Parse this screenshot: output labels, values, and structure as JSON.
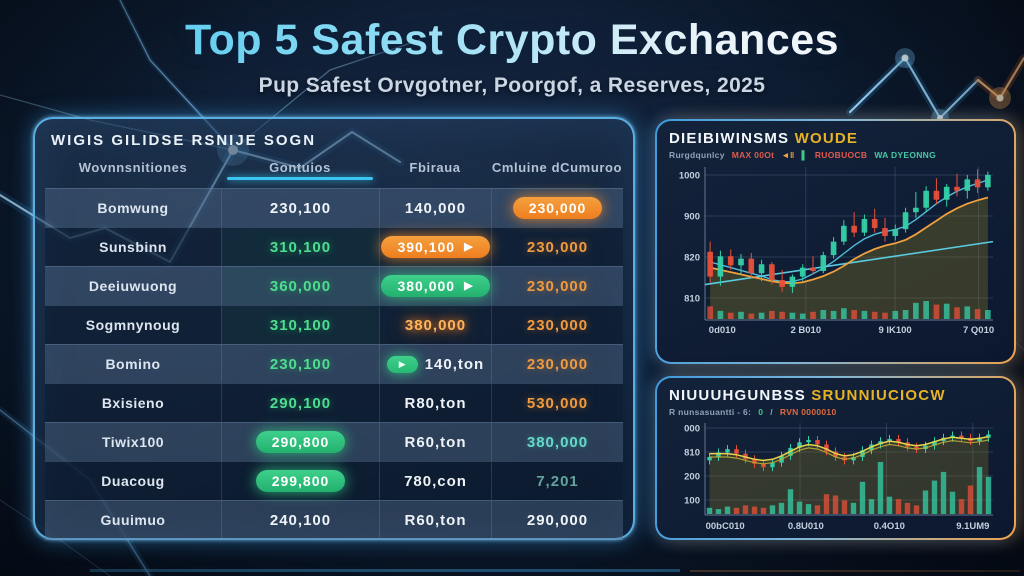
{
  "header": {
    "title": "Top 5 Safest Crypto Exchances",
    "subtitle": "Pup Safest Orvgotner, Poorgof, a Reserves, 2025"
  },
  "table_panel": {
    "title": "WIGIS GILIDSE RSNIJE SOGN",
    "columns": [
      "Wovnnsnitiones",
      "Gontuios",
      "Fbiraua",
      "Cmluine dCumuroo"
    ],
    "rows": [
      {
        "name": "Bomwung",
        "c2": {
          "t": "230,100",
          "s": "white"
        },
        "c3": {
          "t": "140,000",
          "s": "white"
        },
        "c4": {
          "t": "230,000",
          "s": "pill-orange"
        }
      },
      {
        "name": "Sunsbinn",
        "c2": {
          "t": "310,100",
          "s": "green"
        },
        "c3": {
          "t": "390,100",
          "s": "pill-orange-arrow"
        },
        "c4": {
          "t": "230,000",
          "s": "orange"
        }
      },
      {
        "name": "Deeiuwuong",
        "c2": {
          "t": "360,000",
          "s": "green"
        },
        "c3": {
          "t": "380,000",
          "s": "pill-green-arrow"
        },
        "c4": {
          "t": "230,000",
          "s": "orange"
        }
      },
      {
        "name": "Sogmnynoug",
        "c2": {
          "t": "310,100",
          "s": "green"
        },
        "c3": {
          "t": "380,000",
          "s": "glow-orange"
        },
        "c4": {
          "t": "230,000",
          "s": "orange"
        }
      },
      {
        "name": "Bomino",
        "c2": {
          "t": "230,100",
          "s": "green"
        },
        "c3": {
          "t": "140,ton",
          "s": "white",
          "chip": "arrow"
        },
        "c4": {
          "t": "230,000",
          "s": "orange"
        }
      },
      {
        "name": "Bxisieno",
        "c2": {
          "t": "290,100",
          "s": "green"
        },
        "c3": {
          "t": "R80,ton",
          "s": "white"
        },
        "c4": {
          "t": "530,000",
          "s": "orange"
        }
      },
      {
        "name": "Tiwix100",
        "c2": {
          "t": "290,800",
          "s": "pill-green"
        },
        "c3": {
          "t": "R60,ton",
          "s": "white"
        },
        "c4": {
          "t": "380,000",
          "s": "teal"
        }
      },
      {
        "name": "Duacoug",
        "c2": {
          "t": "299,800",
          "s": "pill-green"
        },
        "c3": {
          "t": "780,con",
          "s": "white"
        },
        "c4": {
          "t": "7,201",
          "s": "teal-dim"
        }
      },
      {
        "name": "Guuimuo",
        "c2": {
          "t": "240,100",
          "s": "white"
        },
        "c3": {
          "t": "R60,ton",
          "s": "white"
        },
        "c4": {
          "t": "290,000",
          "s": "white"
        }
      }
    ]
  },
  "chart_panels": [
    {
      "title_white": "DIEIBIWINSMS ",
      "title_gold": "WOUDE",
      "legend": [
        {
          "t": "Rurgdqunlcy",
          "c": "#8fa3b8"
        },
        {
          "t": "MAX 00Ot",
          "c": "#e05a4e"
        },
        {
          "t": "◄‖",
          "c": "#f0a23c"
        },
        {
          "t": "▌",
          "c": "#3ec98a"
        },
        {
          "t": "RUOBUOCB",
          "c": "#e05a4e"
        },
        {
          "t": "WA DYEONNG",
          "c": "#46c9a8"
        }
      ]
    },
    {
      "title_white": "NIUUUHGUNBSS ",
      "title_gold": "SRUNNIUCIOCW",
      "legend": [
        {
          "t": "R nunsasuantti - 6:",
          "c": "#8fa3b8"
        },
        {
          "t": "0",
          "c": "#3ec98a"
        },
        {
          "t": "/",
          "c": "#8fa3b8"
        },
        {
          "t": "RVN 0000010",
          "c": "#e06a3e"
        }
      ]
    }
  ],
  "chart_data": [
    {
      "type": "candlestick",
      "title": "DIEIBIWINSMS WOUDE",
      "ylim": [
        790,
        1020
      ],
      "y_ticks": [
        "1000",
        "900",
        "820",
        "810"
      ],
      "x_ticks": [
        "0d010",
        "2 B010",
        "9 lK100",
        "7 Q010"
      ],
      "grid": true,
      "candles": [
        [
          870,
          888,
          815,
          826
        ],
        [
          826,
          872,
          810,
          862
        ],
        [
          862,
          874,
          838,
          846
        ],
        [
          846,
          866,
          830,
          858
        ],
        [
          858,
          868,
          824,
          832
        ],
        [
          832,
          856,
          818,
          848
        ],
        [
          848,
          852,
          812,
          820
        ],
        [
          820,
          838,
          799,
          808
        ],
        [
          808,
          830,
          797,
          826
        ],
        [
          826,
          848,
          818,
          842
        ],
        [
          842,
          862,
          830,
          836
        ],
        [
          836,
          870,
          832,
          864
        ],
        [
          864,
          896,
          858,
          888
        ],
        [
          888,
          926,
          882,
          916
        ],
        [
          916,
          940,
          896,
          904
        ],
        [
          904,
          936,
          898,
          928
        ],
        [
          928,
          946,
          904,
          912
        ],
        [
          912,
          930,
          888,
          898
        ],
        [
          898,
          918,
          890,
          910
        ],
        [
          910,
          948,
          904,
          940
        ],
        [
          940,
          976,
          930,
          948
        ],
        [
          948,
          986,
          940,
          978
        ],
        [
          978,
          1000,
          954,
          962
        ],
        [
          962,
          990,
          950,
          985
        ],
        [
          985,
          1008,
          968,
          978
        ],
        [
          978,
          1006,
          964,
          998
        ],
        [
          998,
          1016,
          974,
          984
        ],
        [
          984,
          1012,
          978,
          1006
        ]
      ],
      "volumes": [
        14,
        9,
        7,
        8,
        6,
        7,
        9,
        8,
        7,
        6,
        8,
        10,
        9,
        12,
        10,
        9,
        8,
        7,
        9,
        10,
        18,
        20,
        16,
        17,
        13,
        14,
        11,
        10
      ],
      "ma_orange": [
        842,
        838,
        834,
        830,
        826,
        822,
        818,
        815,
        814,
        816,
        821,
        827,
        835,
        845,
        857,
        867,
        875,
        881,
        885,
        891,
        901,
        913,
        925,
        937,
        947,
        955,
        961,
        966
      ],
      "ma_cyan": [
        852,
        847,
        842,
        837,
        832,
        827,
        821,
        817,
        817,
        822,
        831,
        841,
        853,
        867,
        881,
        893,
        901,
        906,
        909,
        915,
        927,
        941,
        955,
        967,
        977,
        985,
        991,
        997
      ],
      "trendline": [
        812,
        888
      ]
    },
    {
      "type": "candlestick-volume",
      "title": "NIUUUHGUNBSS SRUNNIUCIOCW",
      "candle_range": [
        200,
        290
      ],
      "y_ticks": [
        "000",
        "810",
        "200",
        "100"
      ],
      "x_ticks": [
        "00bC010",
        "0.8U010",
        "0.4O10",
        "9.1UM9"
      ],
      "grid": true,
      "closes": [
        230,
        238,
        244,
        236,
        226,
        218,
        212,
        220,
        232,
        246,
        256,
        260,
        252,
        240,
        230,
        224,
        230,
        242,
        252,
        258,
        262,
        256,
        248,
        244,
        250,
        258,
        264,
        268,
        264,
        258,
        264,
        270
      ],
      "volumes": [
        5,
        4,
        6,
        5,
        7,
        6,
        5,
        7,
        9,
        20,
        10,
        8,
        7,
        16,
        15,
        11,
        9,
        26,
        12,
        42,
        14,
        12,
        9,
        7,
        19,
        27,
        34,
        18,
        12,
        23,
        38,
        30
      ],
      "ma_a": [
        236,
        236,
        236,
        234,
        230,
        226,
        224,
        226,
        232,
        240,
        248,
        252,
        250,
        244,
        236,
        232,
        234,
        240,
        248,
        254,
        258,
        256,
        252,
        250,
        252,
        257,
        262,
        265,
        263,
        261,
        263,
        266
      ],
      "ma_b": [
        230,
        230,
        230,
        228,
        224,
        220,
        218,
        220,
        226,
        234,
        242,
        246,
        244,
        238,
        230,
        226,
        228,
        234,
        242,
        248,
        252,
        250,
        246,
        244,
        246,
        251,
        256,
        259,
        257,
        255,
        257,
        260
      ]
    }
  ],
  "colors": {
    "candle_up": "#35d0a8",
    "candle_down": "#e8503a",
    "ma_orange": "#f0a03c",
    "ma_cyan": "#55cdec",
    "trend": "#5bd4ec",
    "ma_yellow_bright": "#e8d44a",
    "ma_yellow_dim": "#c2b236",
    "area_olive": "#8a7a20",
    "grid": "rgba(150,180,212,0.20)",
    "axis": "rgba(170,195,220,0.45)",
    "tick_text": "#c2cedd"
  }
}
